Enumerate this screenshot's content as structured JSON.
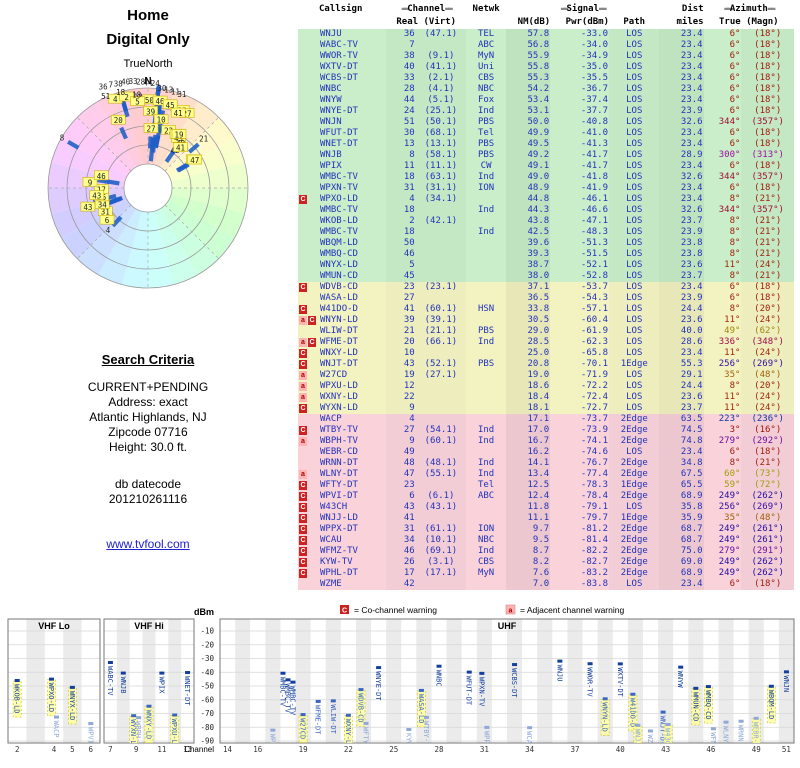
{
  "page": {
    "title1": "Home",
    "title2": "Digital Only",
    "compass": "TrueNorth",
    "north": "N",
    "search_title": "Search Criteria",
    "criteria_lines": [
      "CURRENT+PENDING",
      "Address: exact",
      "Atlantic Highlands, NJ",
      "Zipcode 07716",
      "Height: 30.0 ft."
    ],
    "datecode_label": "db datecode",
    "datecode": "201210261116",
    "site_link": "www.tvfool.com"
  },
  "table_header": {
    "callsign": "Callsign",
    "channel": "Channel",
    "channel_sub": "Real (Virt)",
    "netwk": "Netwk",
    "signal": "Signal",
    "nm": "NM(dB)",
    "pwr": "Pwr(dBm)",
    "path": "Path",
    "dist": "Dist",
    "dist_sub": "miles",
    "azimuth": "Azimuth",
    "az_sub": "True (Magn)",
    "bar": "▬▬"
  },
  "legend": {
    "co_badge": "C",
    "co_text": "= Co-channel warning",
    "adj_badge": "a",
    "adj_text": "= Adjacent channel warning"
  },
  "spectrum": {
    "ylabel": "dBm",
    "xlabel": "Channel",
    "yticks": [
      -10,
      -20,
      -30,
      -40,
      -50,
      -60,
      -70,
      -80,
      -90
    ],
    "panels": [
      {
        "label": "VHF Lo",
        "min": 2,
        "max": 6,
        "ticks": [
          2,
          4,
          5,
          6
        ]
      },
      {
        "label": "VHF Hi",
        "min": 7,
        "max": 13,
        "ticks": [
          7,
          9,
          11,
          13
        ]
      },
      {
        "label": "UHF",
        "min": 14,
        "max": 51,
        "ticks": [
          14,
          16,
          19,
          22,
          25,
          28,
          31,
          34,
          37,
          40,
          43,
          46,
          49,
          51
        ]
      }
    ]
  },
  "colors": {
    "co_badge": "#cc2222",
    "adj_badge_bg": "#ffb3b3",
    "adj_badge_fg": "#aa0000",
    "table_text": "#2233bb",
    "tier_strong_green": "#c9eec9",
    "tier_moderate_yellow": "#f3f3c2",
    "tier_weak_pink": "#f9d2da",
    "radar_tick_blue": "#1e5ec8",
    "spectrum_strong": "#123f9e",
    "spectrum_mid": "#3a66c0",
    "spectrum_weak": "#8fa8d8",
    "highlight_yellow": "#ffff8c",
    "link_blue": "#2222cc"
  },
  "chart_data": {
    "type": "table",
    "title": "TV signal analysis - station list",
    "columns": [
      "badge",
      "callsign",
      "real_ch",
      "virt_ch",
      "netwk",
      "nm_db",
      "pwr_dbm",
      "path",
      "dist_mi",
      "az_true_deg",
      "az_magn_deg"
    ],
    "radar_mapping": {
      "angle_field": "az_true_deg",
      "radius_field": "nm_db"
    },
    "spectrum_mapping": {
      "x_field": "real_ch",
      "y_field": "pwr_dbm"
    },
    "rows": [
      [
        "",
        "WNJU",
        36,
        "(47.1)",
        "TEL",
        57.8,
        -33.0,
        "LOS",
        23.4,
        6,
        18
      ],
      [
        "",
        "WABC-TV",
        7,
        "",
        "ABC",
        56.8,
        -34.0,
        "LOS",
        23.4,
        6,
        18
      ],
      [
        "",
        "WWOR-TV",
        38,
        "(9.1)",
        "MyN",
        55.9,
        -34.9,
        "LOS",
        23.4,
        6,
        18
      ],
      [
        "",
        "WXTV-DT",
        40,
        "(41.1)",
        "Uni",
        55.8,
        -35.0,
        "LOS",
        23.4,
        6,
        18
      ],
      [
        "",
        "WCBS-DT",
        33,
        "(2.1)",
        "CBS",
        55.3,
        -35.5,
        "LOS",
        23.4,
        6,
        18
      ],
      [
        "",
        "WNBC",
        28,
        "(4.1)",
        "NBC",
        54.2,
        -36.7,
        "LOS",
        23.4,
        6,
        18
      ],
      [
        "",
        "WNYW",
        44,
        "(5.1)",
        "Fox",
        53.4,
        -37.4,
        "LOS",
        23.4,
        6,
        18
      ],
      [
        "",
        "WNYE-DT",
        24,
        "(25.1)",
        "Ind",
        53.1,
        -37.7,
        "LOS",
        23.9,
        6,
        18
      ],
      [
        "",
        "WNJN",
        51,
        "(50.1)",
        "PBS",
        50.0,
        -40.8,
        "LOS",
        32.6,
        344,
        357
      ],
      [
        "",
        "WFUT-DT",
        30,
        "(68.1)",
        "Tel",
        49.9,
        -41.0,
        "LOS",
        23.4,
        6,
        18
      ],
      [
        "",
        "WNET-DT",
        13,
        "(13.1)",
        "PBS",
        49.5,
        -41.3,
        "LOS",
        23.4,
        6,
        18
      ],
      [
        "",
        "WNJB",
        8,
        "(58.1)",
        "PBS",
        49.2,
        -41.7,
        "LOS",
        28.9,
        300,
        313
      ],
      [
        "",
        "WPIX",
        11,
        "(11.1)",
        "CW",
        49.1,
        -41.7,
        "LOS",
        23.4,
        6,
        18
      ],
      [
        "",
        "WMBC-TV",
        18,
        "(63.1)",
        "Ind",
        49.0,
        -41.8,
        "LOS",
        32.6,
        344,
        357
      ],
      [
        "",
        "WPXN-TV",
        31,
        "(31.1)",
        "ION",
        48.9,
        -41.9,
        "LOS",
        23.4,
        6,
        18
      ],
      [
        "C",
        "WPXO-LD",
        4,
        "(34.1)",
        "",
        44.8,
        -46.1,
        "LOS",
        23.4,
        8,
        21
      ],
      [
        "",
        "WMBC-TV",
        18,
        "",
        "Ind",
        44.3,
        -46.6,
        "LOS",
        32.6,
        344,
        357
      ],
      [
        "",
        "WKOB-LD",
        2,
        "(42.1)",
        "",
        43.8,
        -47.1,
        "LOS",
        23.7,
        8,
        21
      ],
      [
        "",
        "WMBC-TV",
        18,
        "",
        "Ind",
        42.5,
        -48.3,
        "LOS",
        23.9,
        8,
        21
      ],
      [
        "",
        "WBQM-LD",
        50,
        "",
        "",
        39.6,
        -51.3,
        "LOS",
        23.8,
        8,
        21
      ],
      [
        "",
        "WMBQ-CD",
        46,
        "",
        "",
        39.3,
        -51.5,
        "LOS",
        23.8,
        8,
        21
      ],
      [
        "",
        "WNYX-LD",
        5,
        "",
        "",
        38.7,
        -52.1,
        "LOS",
        23.6,
        11,
        24
      ],
      [
        "",
        "WMUN-CD",
        45,
        "",
        "",
        38.0,
        -52.8,
        "LOS",
        23.7,
        8,
        21
      ],
      [
        "C",
        "WDVB-CD",
        23,
        "(23.1)",
        "",
        37.1,
        -53.7,
        "LOS",
        23.4,
        6,
        18
      ],
      [
        "",
        "WASA-LD",
        27,
        "",
        "",
        36.5,
        -54.3,
        "LOS",
        23.9,
        6,
        18
      ],
      [
        "C",
        "W41DO-D",
        41,
        "(60.1)",
        "HSN",
        33.8,
        -57.1,
        "LOS",
        24.4,
        8,
        20
      ],
      [
        "aC",
        "WNYN-LD",
        39,
        "(39.1)",
        "",
        30.5,
        -60.4,
        "LOS",
        23.6,
        11,
        24
      ],
      [
        "",
        "WLIW-DT",
        21,
        "(21.1)",
        "PBS",
        29.0,
        -61.9,
        "LOS",
        40.0,
        49,
        62
      ],
      [
        "aC",
        "WFME-DT",
        20,
        "(66.1)",
        "Ind",
        28.5,
        -62.3,
        "LOS",
        28.6,
        336,
        348
      ],
      [
        "C",
        "WNXY-LD",
        10,
        "",
        "",
        25.0,
        -65.8,
        "LOS",
        23.4,
        11,
        24
      ],
      [
        "C",
        "WNJT-DT",
        43,
        "(52.1)",
        "PBS",
        20.8,
        -70.1,
        "1Edge",
        55.3,
        256,
        269
      ],
      [
        "a",
        "W27CD",
        19,
        "(27.1)",
        "",
        19.0,
        -71.9,
        "LOS",
        29.1,
        35,
        48
      ],
      [
        "a",
        "WPXU-LD",
        12,
        "",
        "",
        18.6,
        -72.2,
        "LOS",
        24.4,
        8,
        20
      ],
      [
        "a",
        "WXNY-LD",
        22,
        "",
        "",
        18.4,
        -72.4,
        "LOS",
        23.6,
        11,
        24
      ],
      [
        "C",
        "WYXN-LD",
        9,
        "",
        "",
        18.1,
        -72.7,
        "LOS",
        23.7,
        11,
        24
      ],
      [
        "",
        "WACP",
        4,
        "",
        "",
        17.1,
        -73.7,
        "2Edge",
        63.5,
        223,
        236
      ],
      [
        "C",
        "WTBY-TV",
        27,
        "(54.1)",
        "Ind",
        17.0,
        -73.9,
        "2Edge",
        74.5,
        3,
        16
      ],
      [
        "a",
        "WBPH-TV",
        9,
        "(60.1)",
        "Ind",
        16.7,
        -74.1,
        "2Edge",
        74.8,
        279,
        292
      ],
      [
        "",
        "WEBR-CD",
        49,
        "",
        "",
        16.2,
        -74.6,
        "LOS",
        23.4,
        6,
        18
      ],
      [
        "",
        "WRNN-DT",
        48,
        "(48.1)",
        "Ind",
        14.1,
        -76.7,
        "2Edge",
        34.8,
        8,
        21
      ],
      [
        "a",
        "WLNY-DT",
        47,
        "(55.1)",
        "Ind",
        13.4,
        -77.4,
        "2Edge",
        67.5,
        60,
        73
      ],
      [
        "C",
        "WFTY-DT",
        23,
        "",
        "Tel",
        12.5,
        -78.3,
        "1Edge",
        65.5,
        59,
        72
      ],
      [
        "C",
        "WPVI-DT",
        6,
        "(6.1)",
        "ABC",
        12.4,
        -78.4,
        "2Edge",
        68.9,
        249,
        262
      ],
      [
        "C",
        "W43CH",
        43,
        "(43.1)",
        "",
        11.8,
        -79.1,
        "LOS",
        35.8,
        256,
        269
      ],
      [
        "C",
        "WNJJ-LD",
        41,
        "",
        "",
        11.1,
        -79.7,
        "1Edge",
        35.9,
        35,
        48
      ],
      [
        "C",
        "WPPX-DT",
        31,
        "(61.1)",
        "ION",
        9.7,
        -81.2,
        "2Edge",
        68.7,
        249,
        261
      ],
      [
        "C",
        "WCAU",
        34,
        "(10.1)",
        "NBC",
        9.5,
        -81.4,
        "2Edge",
        68.7,
        249,
        261
      ],
      [
        "C",
        "WFMZ-TV",
        46,
        "(69.1)",
        "Ind",
        8.7,
        -82.2,
        "2Edge",
        75.0,
        279,
        291
      ],
      [
        "C",
        "KYW-TV",
        26,
        "(3.1)",
        "CBS",
        8.2,
        -82.7,
        "2Edge",
        69.0,
        249,
        262
      ],
      [
        "C",
        "WPHL-DT",
        17,
        "(17.1)",
        "MyN",
        7.6,
        -83.2,
        "2Edge",
        68.9,
        249,
        262
      ],
      [
        "",
        "WZME",
        42,
        "",
        "",
        7.0,
        -83.8,
        "LOS",
        23.4,
        6,
        18
      ]
    ]
  }
}
